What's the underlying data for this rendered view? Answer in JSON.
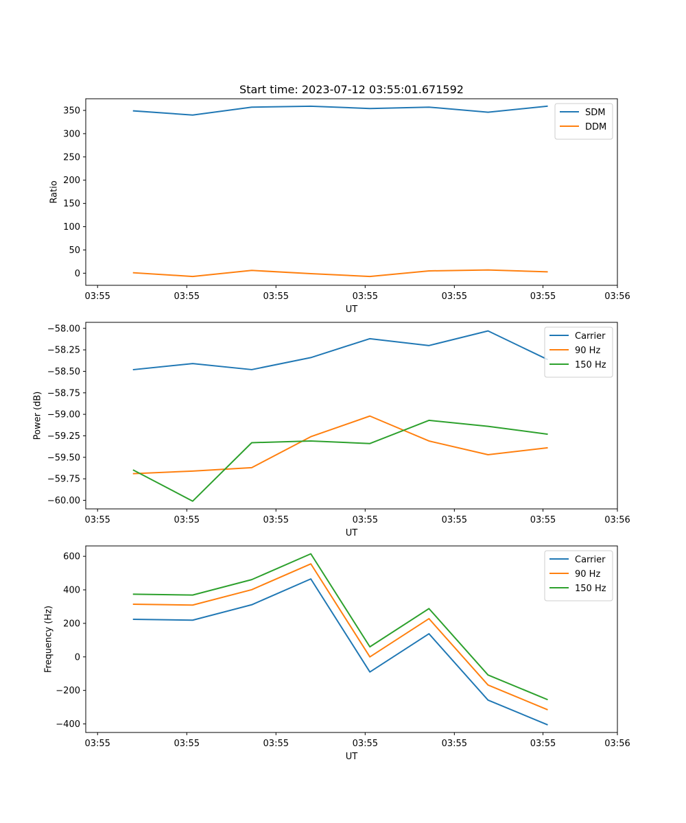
{
  "chart_data": [
    {
      "type": "line",
      "title": "Start time: 2023-07-12 03:55:01.671592",
      "xlabel": "UT",
      "ylabel": "Ratio",
      "x": [
        1,
        2,
        3,
        4,
        5,
        6,
        7,
        8
      ],
      "xlim": [
        0.19,
        9.19
      ],
      "xticks": [
        0.39,
        1.9,
        3.41,
        4.92,
        6.43,
        7.93,
        9.19
      ],
      "xtick_labels": [
        "03:55",
        "03:55",
        "03:55",
        "03:55",
        "03:55",
        "03:55",
        "03:56"
      ],
      "ylim": [
        -26,
        375
      ],
      "yticks": [
        0,
        50,
        100,
        150,
        200,
        250,
        300,
        350
      ],
      "ytick_labels": [
        "0",
        "50",
        "100",
        "150",
        "200",
        "250",
        "300",
        "350"
      ],
      "legend": "top-right",
      "series": [
        {
          "name": "SDM",
          "color": "#1f77b4",
          "values": [
            349,
            340,
            357,
            359,
            354,
            357,
            346,
            359
          ]
        },
        {
          "name": "DDM",
          "color": "#ff7f0e",
          "values": [
            1,
            -7,
            6,
            -1,
            -7,
            5,
            7,
            3
          ]
        }
      ]
    },
    {
      "type": "line",
      "xlabel": "UT",
      "ylabel": "Power (dB)",
      "x": [
        1,
        2,
        3,
        4,
        5,
        6,
        7,
        8
      ],
      "xlim": [
        0.19,
        9.19
      ],
      "xticks": [
        0.39,
        1.9,
        3.41,
        4.92,
        6.43,
        7.93,
        9.19
      ],
      "xtick_labels": [
        "03:55",
        "03:55",
        "03:55",
        "03:55",
        "03:55",
        "03:55",
        "03:56"
      ],
      "ylim": [
        -60.1,
        -57.93
      ],
      "yticks": [
        -60.0,
        -59.75,
        -59.5,
        -59.25,
        -59.0,
        -58.75,
        -58.5,
        -58.25,
        -58.0
      ],
      "ytick_labels": [
        "−60.00",
        "−59.75",
        "−59.50",
        "−59.25",
        "−59.00",
        "−58.75",
        "−58.50",
        "−58.25",
        "−58.00"
      ],
      "legend": "top-right",
      "series": [
        {
          "name": "Carrier",
          "color": "#1f77b4",
          "values": [
            -58.48,
            -58.41,
            -58.48,
            -58.34,
            -58.12,
            -58.2,
            -58.03,
            -58.36
          ]
        },
        {
          "name": "90 Hz",
          "color": "#ff7f0e",
          "values": [
            -59.69,
            -59.66,
            -59.62,
            -59.26,
            -59.02,
            -59.31,
            -59.47,
            -59.39
          ]
        },
        {
          "name": "150 Hz",
          "color": "#2ca02c",
          "values": [
            -59.65,
            -60.01,
            -59.33,
            -59.31,
            -59.34,
            -59.07,
            -59.14,
            -59.23
          ]
        }
      ]
    },
    {
      "type": "line",
      "xlabel": "UT",
      "ylabel": "Frequency (Hz)",
      "x": [
        1,
        2,
        3,
        4,
        5,
        6,
        7,
        8
      ],
      "xlim": [
        0.19,
        9.19
      ],
      "xticks": [
        0.39,
        1.9,
        3.41,
        4.92,
        6.43,
        7.93,
        9.19
      ],
      "xtick_labels": [
        "03:55",
        "03:55",
        "03:55",
        "03:55",
        "03:55",
        "03:55",
        "03:56"
      ],
      "ylim": [
        -451,
        662
      ],
      "yticks": [
        -400,
        -200,
        0,
        200,
        400,
        600
      ],
      "ytick_labels": [
        "−400",
        "−200",
        "0",
        "200",
        "400",
        "600"
      ],
      "legend": "top-right",
      "series": [
        {
          "name": "Carrier",
          "color": "#1f77b4",
          "values": [
            224,
            219,
            311,
            465,
            -90,
            138,
            -258,
            -404
          ]
        },
        {
          "name": "90 Hz",
          "color": "#ff7f0e",
          "values": [
            314,
            309,
            401,
            555,
            0,
            228,
            -168,
            -314
          ]
        },
        {
          "name": "150 Hz",
          "color": "#2ca02c",
          "values": [
            374,
            369,
            461,
            615,
            60,
            288,
            -108,
            -254
          ]
        }
      ]
    }
  ]
}
